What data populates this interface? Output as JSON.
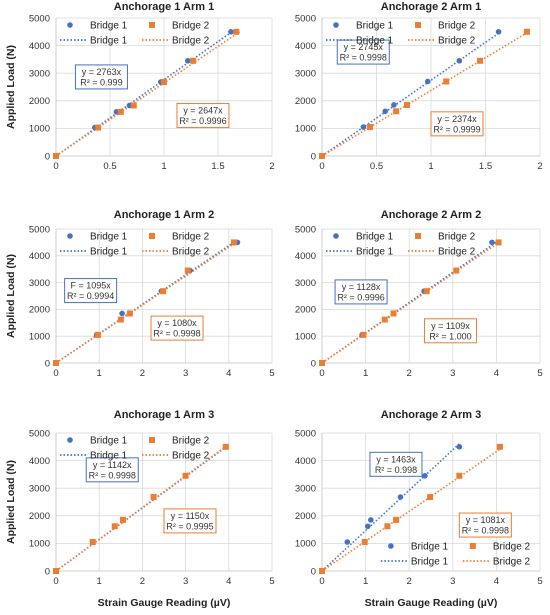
{
  "figure": {
    "ylabel": "Applied Load (N)",
    "xlabel": "Strain Gauge Reading (µV)"
  },
  "colors": {
    "bridge1": "#4472c4",
    "bridge2": "#ed7d31",
    "grid": "#d9d9d9",
    "axis": "#bfbfbf"
  },
  "chart_data": [
    {
      "type": "scatter",
      "title": "Anchorage 1 Arm 1",
      "xlim": [
        0,
        2
      ],
      "ylim": [
        0,
        5000
      ],
      "xticks": [
        0,
        0.5,
        1,
        1.5,
        2
      ],
      "yticks": [
        0,
        1000,
        2000,
        3000,
        4000,
        5000
      ],
      "show_ylabel": true,
      "show_xlabel": false,
      "legend": {
        "position": "top-left",
        "marker_row": [
          "Bridge 1",
          "Bridge 2"
        ],
        "line_row": [
          "Bridge 1",
          "Bridge 2"
        ]
      },
      "series": [
        {
          "name": "Bridge 1",
          "color": "#4472c4",
          "marker": "circle",
          "slope": 2763,
          "x": [
            0,
            0.36,
            0.56,
            0.68,
            0.97,
            1.22,
            1.62
          ],
          "y": [
            0,
            1030,
            1600,
            1830,
            2680,
            3450,
            4500
          ]
        },
        {
          "name": "Bridge 2",
          "color": "#ed7d31",
          "marker": "square",
          "slope": 2647,
          "x": [
            0,
            0.39,
            0.6,
            0.72,
            1.0,
            1.27,
            1.67
          ],
          "y": [
            0,
            1030,
            1600,
            1830,
            2680,
            3450,
            4500
          ]
        }
      ],
      "equations": [
        {
          "series": "Bridge 1",
          "line1": "y = 2763x",
          "line2": "R² = 0.999",
          "pos": "left"
        },
        {
          "series": "Bridge 2",
          "line1": "y = 2647x",
          "line2": "R² = 0.9996",
          "pos": "right"
        }
      ]
    },
    {
      "type": "scatter",
      "title": "Anchorage 2 Arm 1",
      "xlim": [
        0,
        2
      ],
      "ylim": [
        0,
        5000
      ],
      "xticks": [
        0,
        0.5,
        1,
        1.5,
        2
      ],
      "yticks": [
        0,
        1000,
        2000,
        3000,
        4000,
        5000
      ],
      "show_ylabel": false,
      "show_xlabel": false,
      "legend": {
        "position": "top-left",
        "marker_row": [
          "Bridge 1",
          "Bridge 2"
        ],
        "line_row": [
          "Bridge 1",
          "Bridge 2"
        ]
      },
      "series": [
        {
          "name": "Bridge 1",
          "color": "#4472c4",
          "marker": "circle",
          "slope": 2745,
          "x": [
            0,
            0.38,
            0.58,
            0.66,
            0.97,
            1.26,
            1.62
          ],
          "y": [
            0,
            1050,
            1620,
            1850,
            2700,
            3450,
            4500
          ]
        },
        {
          "name": "Bridge 2",
          "color": "#ed7d31",
          "marker": "square",
          "slope": 2374,
          "x": [
            0,
            0.44,
            0.68,
            0.78,
            1.14,
            1.45,
            1.88
          ],
          "y": [
            0,
            1050,
            1620,
            1850,
            2700,
            3450,
            4500
          ]
        }
      ],
      "equations": [
        {
          "series": "Bridge 1",
          "line1": "y = 2745x",
          "line2": "R² = 0.9998",
          "pos": "left"
        },
        {
          "series": "Bridge 2",
          "line1": "y = 2374x",
          "line2": "R² = 0.9999",
          "pos": "right"
        }
      ]
    },
    {
      "type": "scatter",
      "title": "Anchorage 1 Arm 2",
      "xlim": [
        0,
        5
      ],
      "ylim": [
        0,
        5000
      ],
      "xticks": [
        0,
        1,
        2,
        3,
        4,
        5
      ],
      "yticks": [
        0,
        1000,
        2000,
        3000,
        4000,
        5000
      ],
      "show_ylabel": true,
      "show_xlabel": false,
      "legend": {
        "position": "top-left",
        "marker_row": [
          "Bridge 1",
          "Bridge 2"
        ],
        "line_row": [
          "Bridge 1",
          "Bridge 2"
        ]
      },
      "series": [
        {
          "name": "Bridge 1",
          "color": "#4472c4",
          "marker": "circle",
          "slope": 1095,
          "x": [
            0,
            0.94,
            1.53,
            2.44,
            3.1,
            4.2
          ],
          "y": [
            0,
            1050,
            1850,
            2680,
            3450,
            4500
          ]
        },
        {
          "name": "Bridge 2",
          "color": "#ed7d31",
          "marker": "square",
          "slope": 1080,
          "x": [
            0,
            0.97,
            1.5,
            1.71,
            2.48,
            3.05,
            4.12
          ],
          "y": [
            0,
            1050,
            1620,
            1850,
            2680,
            3450,
            4500
          ]
        }
      ],
      "equations": [
        {
          "series": "Bridge 1",
          "line1": "F = 1095x",
          "line2": "R² = 0.9994",
          "pos": "left"
        },
        {
          "series": "Bridge 2",
          "line1": "y = 1080x",
          "line2": "R² = 0.9998",
          "pos": "right"
        }
      ]
    },
    {
      "type": "scatter",
      "title": "Anchorage 2 Arm 2",
      "xlim": [
        0,
        5
      ],
      "ylim": [
        0,
        5000
      ],
      "xticks": [
        0,
        1,
        2,
        3,
        4,
        5
      ],
      "yticks": [
        0,
        1000,
        2000,
        3000,
        4000,
        5000
      ],
      "show_ylabel": false,
      "show_xlabel": false,
      "legend": {
        "position": "top-left",
        "marker_row": [
          "Bridge 1",
          "Bridge 2"
        ],
        "line_row": [
          "Bridge 1",
          "Bridge 2"
        ]
      },
      "series": [
        {
          "name": "Bridge 1",
          "color": "#4472c4",
          "marker": "circle",
          "slope": 1128,
          "x": [
            0,
            0.92,
            2.34,
            3.9
          ],
          "y": [
            0,
            1050,
            2680,
            4500
          ]
        },
        {
          "name": "Bridge 2",
          "color": "#ed7d31",
          "marker": "square",
          "slope": 1109,
          "x": [
            0,
            0.95,
            1.44,
            1.64,
            2.4,
            3.08,
            4.05
          ],
          "y": [
            0,
            1050,
            1620,
            1850,
            2680,
            3450,
            4500
          ]
        }
      ],
      "equations": [
        {
          "series": "Bridge 1",
          "line1": "y = 1128x",
          "line2": "R² = 0.9996",
          "pos": "left"
        },
        {
          "series": "Bridge 2",
          "line1": "y = 1109x",
          "line2": "R² = 1.000",
          "pos": "right"
        }
      ]
    },
    {
      "type": "scatter",
      "title": "Anchorage 1 Arm 3",
      "xlim": [
        0,
        5
      ],
      "ylim": [
        0,
        5000
      ],
      "xticks": [
        0,
        1,
        2,
        3,
        4,
        5
      ],
      "yticks": [
        0,
        1000,
        2000,
        3000,
        4000,
        5000
      ],
      "show_ylabel": true,
      "show_xlabel": true,
      "legend": {
        "position": "top-left",
        "marker_row": [
          "Bridge 1",
          "Bridge 2"
        ],
        "line_row": [
          "Bridge 1",
          "Bridge 2"
        ]
      },
      "series": [
        {
          "name": "Bridge 1",
          "color": "#4472c4",
          "marker": "circle",
          "slope": 1142,
          "x": [
            0
          ],
          "y": [
            0
          ]
        },
        {
          "name": "Bridge 2",
          "color": "#ed7d31",
          "marker": "square",
          "slope": 1150,
          "x": [
            0,
            0.85,
            1.36,
            1.55,
            2.26,
            3.0,
            3.93
          ],
          "y": [
            0,
            1050,
            1620,
            1850,
            2680,
            3450,
            4500
          ]
        }
      ],
      "equations": [
        {
          "series": "Bridge 1",
          "line1": "y = 1142x",
          "line2": "R² = 0.9998",
          "pos": "left"
        },
        {
          "series": "Bridge 2",
          "line1": "y = 1150x",
          "line2": "R² = 0.9995",
          "pos": "right"
        }
      ]
    },
    {
      "type": "scatter",
      "title": "Anchorage 2 Arm 3",
      "xlim": [
        0,
        5
      ],
      "ylim": [
        0,
        5000
      ],
      "xticks": [
        0,
        1,
        2,
        3,
        4,
        5
      ],
      "yticks": [
        0,
        1000,
        2000,
        3000,
        4000,
        5000
      ],
      "show_ylabel": false,
      "show_xlabel": true,
      "legend": {
        "position": "bottom-right",
        "marker_row": [
          "Bridge 1",
          "Bridge 2"
        ],
        "line_row": [
          "Bridge 1",
          "Bridge 2"
        ]
      },
      "series": [
        {
          "name": "Bridge 1",
          "color": "#4472c4",
          "marker": "circle",
          "slope": 1463,
          "x": [
            0,
            0.58,
            1.05,
            1.12,
            1.8,
            2.36,
            3.15
          ],
          "y": [
            0,
            1050,
            1620,
            1850,
            2680,
            3450,
            4500
          ]
        },
        {
          "name": "Bridge 2",
          "color": "#ed7d31",
          "marker": "square",
          "slope": 1081,
          "x": [
            0,
            0.98,
            1.5,
            1.7,
            2.48,
            3.15,
            4.08
          ],
          "y": [
            0,
            1050,
            1620,
            1850,
            2680,
            3450,
            4500
          ]
        }
      ],
      "equations": [
        {
          "series": "Bridge 1",
          "line1": "y = 1463x",
          "line2": "R² = 0.998",
          "pos": "left"
        },
        {
          "series": "Bridge 2",
          "line1": "y = 1081x",
          "line2": "R² = 0.9998",
          "pos": "right"
        }
      ]
    }
  ]
}
